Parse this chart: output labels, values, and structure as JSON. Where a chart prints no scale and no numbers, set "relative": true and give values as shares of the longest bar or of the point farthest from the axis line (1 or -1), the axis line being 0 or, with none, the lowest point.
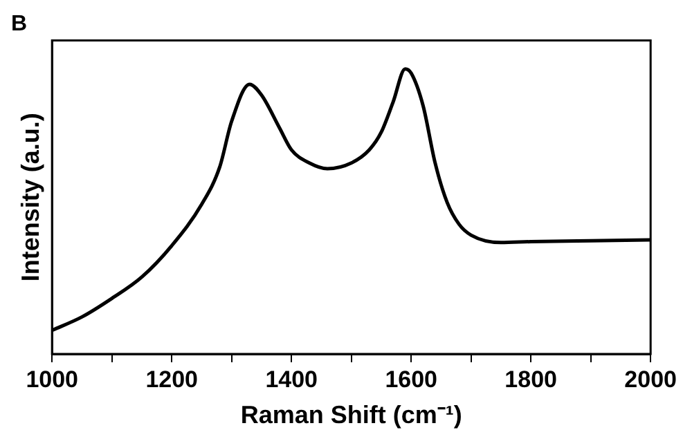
{
  "chart_data": {
    "type": "line",
    "title": "B",
    "xlabel": "Raman Shift (cm⁻¹)",
    "ylabel": "Intensity (a.u.)",
    "relative": true,
    "xlim": [
      1000,
      2000
    ],
    "xticks": [
      1000,
      {
        "value": 1100,
        "label": null
      },
      1200,
      {
        "value": 1300,
        "label": null
      },
      1400,
      {
        "value": 1500,
        "label": null
      },
      1600,
      {
        "value": 1700,
        "label": null
      },
      1800,
      {
        "value": 1900,
        "label": null
      },
      2000
    ],
    "grid": false,
    "legend": false,
    "marker": "none",
    "line_style": "solid",
    "series": [
      {
        "color": "#000000",
        "x": [
          1000,
          1050,
          1100,
          1150,
          1200,
          1250,
          1280,
          1300,
          1330,
          1350,
          1380,
          1400,
          1430,
          1460,
          1500,
          1530,
          1550,
          1570,
          1590,
          1600,
          1620,
          1640,
          1660,
          1680,
          1700,
          1750,
          1800,
          1900,
          2000
        ],
        "values": [
          0.083,
          0.13,
          0.195,
          0.27,
          0.38,
          0.525,
          0.655,
          0.816,
          0.946,
          0.908,
          0.793,
          0.716,
          0.67,
          0.65,
          0.67,
          0.716,
          0.778,
          0.885,
          1,
          0.985,
          0.87,
          0.67,
          0.532,
          0.455,
          0.417,
          0.391,
          0.394,
          0.397,
          0.4
        ]
      }
    ]
  }
}
